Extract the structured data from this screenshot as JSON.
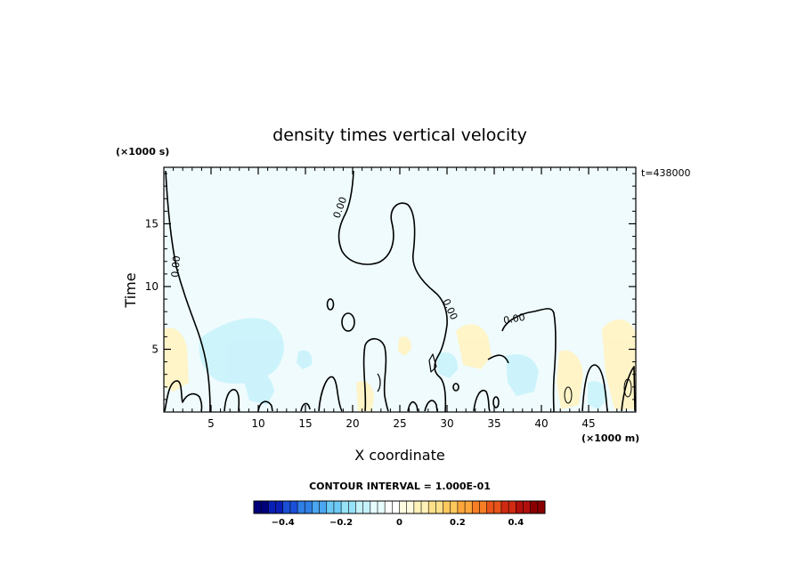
{
  "chart_data": {
    "type": "heatmap",
    "title": "density times vertical velocity",
    "xlabel": "X coordinate",
    "ylabel": "Time",
    "x_unit": "(×1000 m)",
    "y_unit": "(×1000 s)",
    "time_stamp": "t=438000",
    "xlim": [
      0,
      50
    ],
    "ylim": [
      0,
      19.5
    ],
    "x_ticks": [
      5,
      10,
      15,
      20,
      25,
      30,
      35,
      40,
      45
    ],
    "x_tick_labels": [
      "5",
      "10",
      "15",
      "20",
      "25",
      "30",
      "35",
      "40",
      "45"
    ],
    "y_ticks": [
      5,
      10,
      15
    ],
    "y_tick_labels": [
      "5",
      "10",
      "15"
    ],
    "contour_interval": "CONTOUR INTERVAL = 1.000E-01",
    "contour_labels": [
      "0.00",
      "0.00",
      "0.00",
      "0.00"
    ],
    "colorbar": {
      "range": [
        -0.5,
        0.5
      ],
      "tick_values": [
        -0.4,
        -0.2,
        0,
        0.2,
        0.4
      ],
      "tick_labels": [
        "−0.4",
        "−0.2",
        "0",
        "0.2",
        "0.4"
      ],
      "colors": [
        "#00007a",
        "#0a1fb5",
        "#1a4fd6",
        "#2f7fe6",
        "#4aa6f0",
        "#6ccaf5",
        "#96e2f8",
        "#c4f2fb",
        "#e6fbfd",
        "#ffffff",
        "#fffbe0",
        "#fff1b8",
        "#ffe08a",
        "#ffc85c",
        "#ffa63a",
        "#f77e25",
        "#e8531a",
        "#d12a12",
        "#b00f0c",
        "#8a0000"
      ]
    },
    "background_value": -0.02,
    "background_color": "#effbfd",
    "grid": false
  }
}
